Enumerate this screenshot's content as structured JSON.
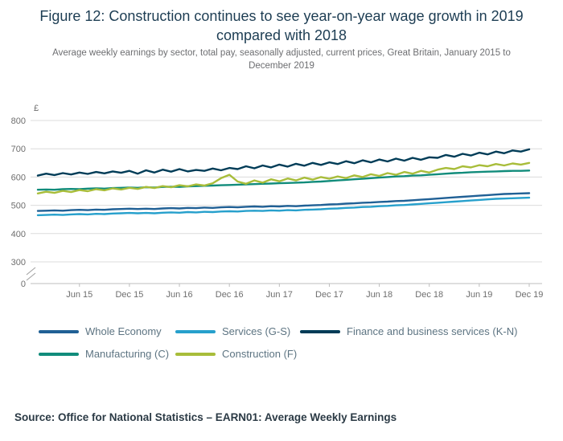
{
  "figure": {
    "title": "Figure 12: Construction continues to see year-on-year wage growth in 2019 compared with 2018",
    "subtitle": "Average weekly earnings by sector, total pay, seasonally adjusted, current prices, Great Britain, January 2015 to December 2019",
    "source": "Source: Office for National Statistics – EARN01: Average Weekly Earnings"
  },
  "chart_data": {
    "type": "line",
    "title": "Figure 12: Construction continues to see year-on-year wage growth in 2019 compared with 2018",
    "subtitle": "Average weekly earnings by sector, total pay, seasonally adjusted, current prices, Great Britain, January 2015 to December 2019",
    "unit_label": "£",
    "xlabel": "",
    "ylabel": "£",
    "ylim": [
      300,
      800
    ],
    "y_ticks": [
      300,
      400,
      500,
      600,
      700,
      800
    ],
    "y_axis_zero_label": "0",
    "y_axis_break": true,
    "grid": "horizontal",
    "legend_position": "bottom",
    "x_period": "monthly, Jan 2015 to Dec 2019",
    "x_tick_labels": [
      "Jun 15",
      "Dec 15",
      "Jun 16",
      "Dec 16",
      "Jun 17",
      "Dec 17",
      "Jun 18",
      "Dec 18",
      "Jun 19",
      "Dec 19"
    ],
    "x_tick_indices": [
      5,
      11,
      17,
      23,
      29,
      35,
      41,
      47,
      53,
      59
    ],
    "series": [
      {
        "name": "Whole Economy",
        "color": "#206095",
        "values": [
          480,
          481,
          482,
          481,
          483,
          484,
          483,
          485,
          484,
          486,
          487,
          488,
          487,
          488,
          487,
          489,
          490,
          489,
          491,
          490,
          492,
          491,
          493,
          494,
          493,
          495,
          496,
          495,
          497,
          496,
          498,
          497,
          499,
          500,
          501,
          503,
          504,
          506,
          507,
          509,
          510,
          512,
          513,
          515,
          516,
          518,
          520,
          522,
          524,
          526,
          528,
          530,
          532,
          534,
          536,
          538,
          540,
          541,
          542,
          543
        ]
      },
      {
        "name": "Services (G-S)",
        "color": "#27a0cc",
        "values": [
          465,
          466,
          467,
          466,
          468,
          469,
          468,
          470,
          469,
          471,
          472,
          473,
          472,
          473,
          472,
          474,
          475,
          474,
          476,
          475,
          477,
          476,
          478,
          479,
          478,
          480,
          481,
          480,
          482,
          481,
          483,
          482,
          484,
          485,
          486,
          488,
          489,
          491,
          492,
          494,
          495,
          497,
          498,
          500,
          501,
          503,
          505,
          507,
          509,
          511,
          513,
          515,
          517,
          519,
          521,
          523,
          524,
          525,
          526,
          527
        ]
      },
      {
        "name": "Finance and business services (K-N)",
        "color": "#003c57",
        "values": [
          605,
          612,
          607,
          614,
          609,
          616,
          611,
          618,
          613,
          620,
          615,
          622,
          612,
          624,
          616,
          626,
          619,
          628,
          620,
          625,
          622,
          630,
          624,
          632,
          628,
          638,
          631,
          641,
          634,
          644,
          637,
          647,
          640,
          650,
          643,
          652,
          646,
          656,
          649,
          659,
          652,
          662,
          655,
          665,
          658,
          668,
          661,
          670,
          668,
          678,
          672,
          682,
          676,
          686,
          680,
          690,
          684,
          694,
          690,
          698
        ]
      },
      {
        "name": "Manufacturing (C)",
        "color": "#118c7b",
        "values": [
          555,
          556,
          555,
          557,
          558,
          557,
          559,
          560,
          559,
          561,
          562,
          563,
          562,
          564,
          563,
          565,
          566,
          565,
          567,
          568,
          569,
          570,
          571,
          572,
          573,
          574,
          575,
          576,
          577,
          578,
          579,
          580,
          581,
          583,
          584,
          586,
          588,
          590,
          592,
          594,
          596,
          598,
          600,
          602,
          603,
          605,
          606,
          608,
          610,
          612,
          614,
          615,
          617,
          618,
          619,
          620,
          621,
          622,
          622,
          623
        ]
      },
      {
        "name": "Construction (F)",
        "color": "#a8bd3a",
        "values": [
          542,
          548,
          544,
          551,
          547,
          554,
          550,
          557,
          553,
          560,
          556,
          562,
          558,
          565,
          561,
          568,
          564,
          571,
          567,
          574,
          570,
          578,
          596,
          608,
          584,
          576,
          588,
          580,
          592,
          585,
          595,
          588,
          598,
          591,
          600,
          594,
          602,
          596,
          606,
          600,
          610,
          604,
          614,
          608,
          618,
          612,
          622,
          616,
          626,
          632,
          628,
          638,
          634,
          642,
          638,
          646,
          641,
          648,
          644,
          650
        ]
      }
    ]
  }
}
